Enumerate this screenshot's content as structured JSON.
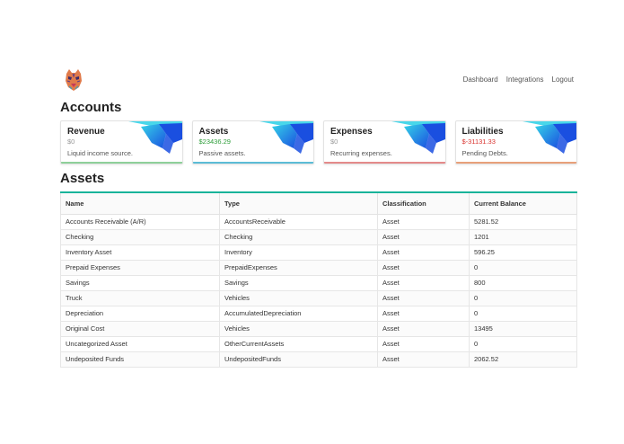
{
  "nav": {
    "items": [
      "Dashboard",
      "Integrations",
      "Logout"
    ]
  },
  "logo": {
    "icon": "tiger-logo-icon"
  },
  "accounts_title": "Accounts",
  "assets_title": "Assets",
  "cards": [
    {
      "title": "Revenue",
      "value": "$0",
      "description": "Liquid income source.",
      "value_color": "#999999",
      "bar_color": "#8ed09a"
    },
    {
      "title": "Assets",
      "value": "$23436.29",
      "description": "Passive assets.",
      "value_color": "#2e9e3a",
      "bar_color": "#5bbcd6"
    },
    {
      "title": "Expenses",
      "value": "$0",
      "description": "Recurring expenses.",
      "value_color": "#999999",
      "bar_color": "#e48a8a"
    },
    {
      "title": "Liabilities",
      "value": "$-31131.33",
      "description": "Pending Debts.",
      "value_color": "#d9332f",
      "bar_color": "#e8a07a"
    }
  ],
  "table": {
    "headers": [
      "Name",
      "Type",
      "Classification",
      "Current Balance"
    ],
    "rows": [
      [
        "Accounts Receivable (A/R)",
        "AccountsReceivable",
        "Asset",
        "5281.52"
      ],
      [
        "Checking",
        "Checking",
        "Asset",
        "1201"
      ],
      [
        "Inventory Asset",
        "Inventory",
        "Asset",
        "596.25"
      ],
      [
        "Prepaid Expenses",
        "PrepaidExpenses",
        "Asset",
        "0"
      ],
      [
        "Savings",
        "Savings",
        "Asset",
        "800"
      ],
      [
        "Truck",
        "Vehicles",
        "Asset",
        "0"
      ],
      [
        "Depreciation",
        "AccumulatedDepreciation",
        "Asset",
        "0"
      ],
      [
        "Original Cost",
        "Vehicles",
        "Asset",
        "13495"
      ],
      [
        "Uncategorized Asset",
        "OtherCurrentAssets",
        "Asset",
        "0"
      ],
      [
        "Undeposited Funds",
        "UndepositedFunds",
        "Asset",
        "2062.52"
      ]
    ]
  },
  "colors": {
    "accent": "#19b39a",
    "card_art_blue": "#1a4fe0",
    "card_art_cyan": "#35d3e8"
  }
}
